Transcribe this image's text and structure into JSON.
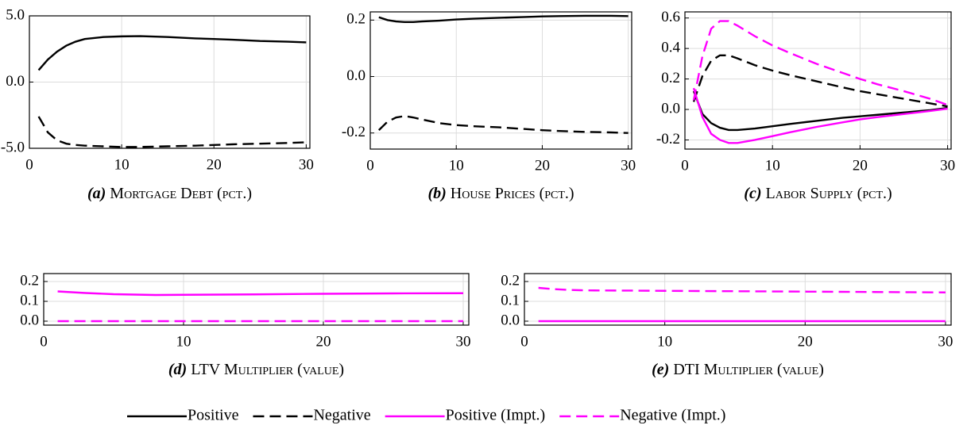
{
  "chart_data": [
    {
      "type": "line",
      "panel": "(a)",
      "title": "Mortgage Debt (pct.)",
      "x": [
        1,
        2,
        3,
        4,
        5,
        6,
        8,
        10,
        12,
        15,
        18,
        20,
        22,
        25,
        28,
        30
      ],
      "series": [
        {
          "name": "Positive",
          "color": "#000000",
          "dash": false,
          "values": [
            0.9,
            1.7,
            2.3,
            2.75,
            3.05,
            3.25,
            3.4,
            3.45,
            3.47,
            3.4,
            3.3,
            3.25,
            3.2,
            3.1,
            3.05,
            3.0
          ]
        },
        {
          "name": "Negative",
          "color": "#000000",
          "dash": true,
          "values": [
            -2.6,
            -3.8,
            -4.4,
            -4.65,
            -4.75,
            -4.8,
            -4.85,
            -4.9,
            -4.9,
            -4.85,
            -4.8,
            -4.75,
            -4.7,
            -4.65,
            -4.6,
            -4.55
          ]
        }
      ],
      "xlim": [
        0,
        30.4
      ],
      "ylim": [
        -5,
        5
      ],
      "xticks": [
        0,
        10,
        20,
        30
      ],
      "yticks": [
        {
          "value": -5,
          "label": "-5.0"
        },
        {
          "value": 0,
          "label": "0.0"
        },
        {
          "value": 5,
          "label": "5.0"
        }
      ],
      "grid": true
    },
    {
      "type": "line",
      "panel": "(b)",
      "title": "House Prices (pct.)",
      "x": [
        1,
        2,
        3,
        4,
        5,
        6,
        8,
        10,
        12,
        15,
        18,
        20,
        22,
        25,
        28,
        30
      ],
      "series": [
        {
          "name": "Positive",
          "color": "#000000",
          "dash": false,
          "values": [
            0.21,
            0.2,
            0.195,
            0.193,
            0.193,
            0.195,
            0.198,
            0.202,
            0.205,
            0.208,
            0.211,
            0.213,
            0.214,
            0.215,
            0.215,
            0.214
          ]
        },
        {
          "name": "Negative",
          "color": "#000000",
          "dash": true,
          "values": [
            -0.19,
            -0.16,
            -0.145,
            -0.14,
            -0.145,
            -0.152,
            -0.165,
            -0.172,
            -0.176,
            -0.18,
            -0.186,
            -0.19,
            -0.193,
            -0.196,
            -0.198,
            -0.2
          ]
        }
      ],
      "xlim": [
        0,
        30.4
      ],
      "ylim": [
        -0.257,
        0.229
      ],
      "xticks": [
        0,
        10,
        20,
        30
      ],
      "yticks": [
        -0.2,
        {
          "value": 0,
          "label": "0.0"
        },
        0.2
      ],
      "grid": true
    },
    {
      "type": "line",
      "panel": "(c)",
      "title": "Labor Supply (pct.)",
      "x": [
        1,
        2,
        3,
        4,
        5,
        6,
        8,
        10,
        12,
        15,
        18,
        20,
        22,
        25,
        28,
        30
      ],
      "series": [
        {
          "name": "Positive",
          "color": "#000000",
          "dash": false,
          "values": [
            0.12,
            -0.03,
            -0.09,
            -0.12,
            -0.135,
            -0.135,
            -0.125,
            -0.11,
            -0.095,
            -0.075,
            -0.055,
            -0.045,
            -0.035,
            -0.02,
            -0.005,
            0.01
          ]
        },
        {
          "name": "Negative",
          "color": "#000000",
          "dash": true,
          "values": [
            0.05,
            0.22,
            0.32,
            0.355,
            0.355,
            0.335,
            0.29,
            0.255,
            0.225,
            0.185,
            0.145,
            0.12,
            0.1,
            0.07,
            0.04,
            0.02
          ]
        },
        {
          "name": "Positive (Impt.)",
          "color": "#ff00ff",
          "dash": false,
          "values": [
            0.14,
            -0.05,
            -0.16,
            -0.2,
            -0.22,
            -0.22,
            -0.2,
            -0.175,
            -0.15,
            -0.115,
            -0.085,
            -0.065,
            -0.05,
            -0.03,
            -0.01,
            0.005
          ]
        },
        {
          "name": "Negative (Impt.)",
          "color": "#ff00ff",
          "dash": true,
          "values": [
            0.06,
            0.35,
            0.53,
            0.58,
            0.58,
            0.55,
            0.48,
            0.42,
            0.37,
            0.3,
            0.24,
            0.2,
            0.165,
            0.12,
            0.07,
            0.03
          ]
        }
      ],
      "xlim": [
        0,
        30.4
      ],
      "ylim": [
        -0.26,
        0.64
      ],
      "xticks": [
        0,
        10,
        20,
        30
      ],
      "yticks": [
        -0.2,
        {
          "value": 0,
          "label": "0.0"
        },
        0.2,
        0.4,
        0.6
      ],
      "grid": true
    },
    {
      "type": "line",
      "panel": "(d)",
      "title": "LTV Multiplier (value)",
      "x": [
        1,
        2,
        3,
        4,
        5,
        8,
        10,
        15,
        20,
        25,
        30
      ],
      "series": [
        {
          "name": "Positive (Impt.)",
          "color": "#ff00ff",
          "dash": false,
          "values": [
            0.15,
            0.146,
            0.142,
            0.139,
            0.136,
            0.132,
            0.133,
            0.135,
            0.138,
            0.14,
            0.141
          ]
        },
        {
          "name": "Negative (Impt.)",
          "color": "#ff00ff",
          "dash": true,
          "values": [
            0,
            0,
            0,
            0,
            0,
            0,
            0,
            0,
            0,
            0,
            0
          ]
        }
      ],
      "xlim": [
        0,
        30.4
      ],
      "ylim": [
        -0.02,
        0.24
      ],
      "xticks": [
        0,
        10,
        20,
        30
      ],
      "yticks": [
        {
          "value": 0,
          "label": "0.0"
        },
        0.1,
        0.2
      ],
      "grid": true
    },
    {
      "type": "line",
      "panel": "(e)",
      "title": "DTI Multiplier (value)",
      "x": [
        1,
        2,
        3,
        4,
        5,
        8,
        10,
        15,
        20,
        25,
        30
      ],
      "series": [
        {
          "name": "Positive (Impt.)",
          "color": "#ff00ff",
          "dash": false,
          "values": [
            0,
            0,
            0,
            0,
            0,
            0,
            0,
            0,
            0,
            0,
            0
          ]
        },
        {
          "name": "Negative (Impt.)",
          "color": "#ff00ff",
          "dash": true,
          "values": [
            0.168,
            0.162,
            0.158,
            0.156,
            0.155,
            0.154,
            0.153,
            0.151,
            0.149,
            0.147,
            0.145
          ]
        }
      ],
      "xlim": [
        0,
        30.4
      ],
      "ylim": [
        -0.02,
        0.24
      ],
      "xticks": [
        0,
        10,
        20,
        30
      ],
      "yticks": [
        {
          "value": 0,
          "label": "0.0"
        },
        0.1,
        0.2
      ],
      "grid": true
    }
  ]
}
